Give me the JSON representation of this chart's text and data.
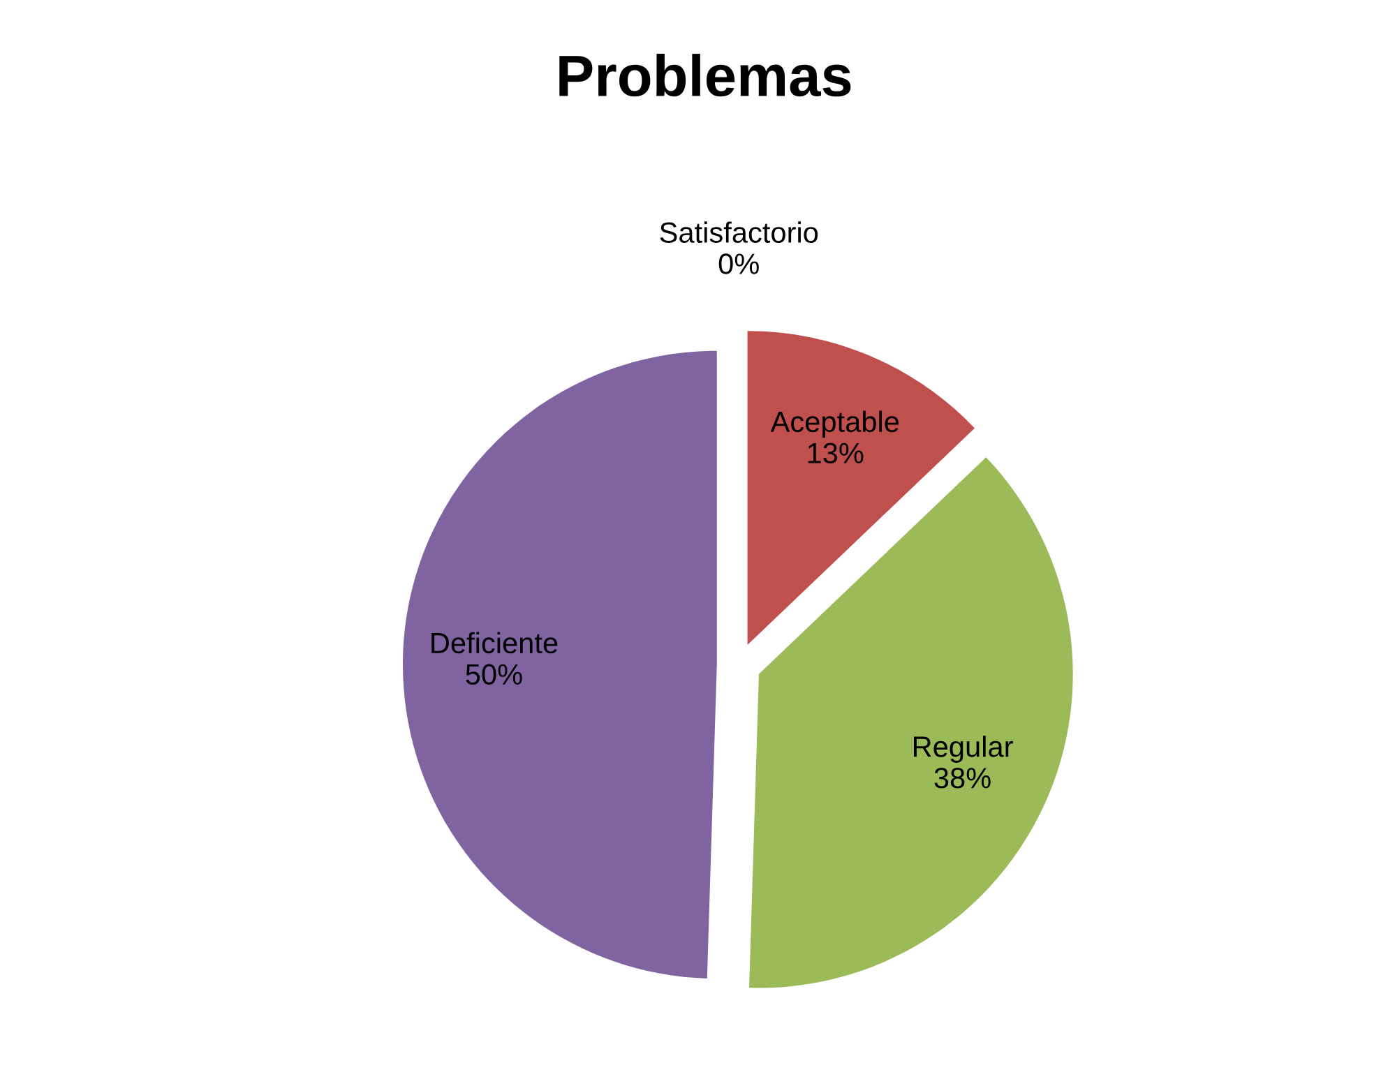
{
  "chart_data": {
    "type": "pie",
    "title": "Problemas",
    "categories": [
      "Satisfactorio",
      "Aceptable",
      "Regular",
      "Deficiente"
    ],
    "values": [
      0,
      13,
      38,
      50
    ],
    "value_labels": [
      "0%",
      "13%",
      "38%",
      "50%"
    ],
    "colors": [
      "#4f81bd",
      "#c0504d",
      "#9bbb59",
      "#8064a2"
    ],
    "legend": false
  }
}
